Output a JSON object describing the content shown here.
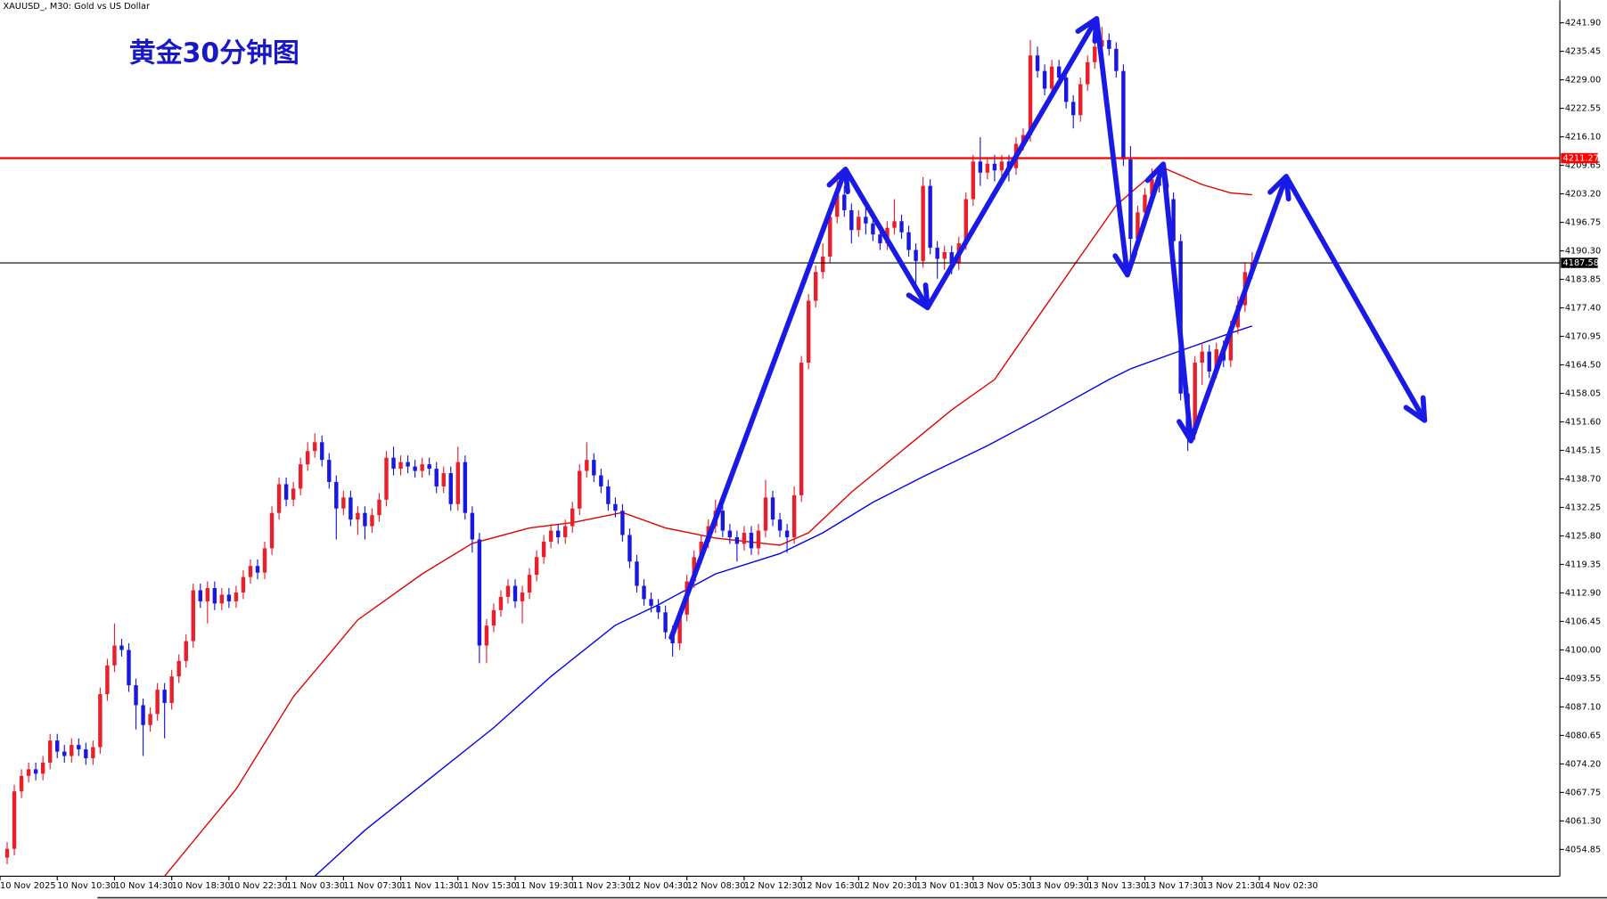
{
  "chart_data": {
    "type": "candlestick",
    "title": "黄金30分钟图",
    "subtitle": "XAUUSD_, M30:  Gold vs US Dollar",
    "up_color": "#e8202c",
    "down_color": "#1818e0",
    "xlim": [
      -1,
      217
    ],
    "ylim": [
      4048.8,
      4247.0
    ],
    "xticks": [
      {
        "value": -1,
        "label": "10 Nov 2025"
      },
      {
        "value": 7,
        "label": "10 Nov 10:30"
      },
      {
        "value": 15,
        "label": "10 Nov 14:30"
      },
      {
        "value": 23,
        "label": "10 Nov 18:30"
      },
      {
        "value": 31,
        "label": "10 Nov 22:30"
      },
      {
        "value": 39,
        "label": "11 Nov 03:30"
      },
      {
        "value": 47,
        "label": "11 Nov 07:30"
      },
      {
        "value": 55,
        "label": "11 Nov 11:30"
      },
      {
        "value": 63,
        "label": "11 Nov 15:30"
      },
      {
        "value": 71,
        "label": "11 Nov 19:30"
      },
      {
        "value": 79,
        "label": "11 Nov 23:30"
      },
      {
        "value": 87,
        "label": "12 Nov 04:30"
      },
      {
        "value": 95,
        "label": "12 Nov 08:30"
      },
      {
        "value": 103,
        "label": "12 Nov 12:30"
      },
      {
        "value": 111,
        "label": "12 Nov 16:30"
      },
      {
        "value": 119,
        "label": "12 Nov 20:30"
      },
      {
        "value": 127,
        "label": "13 Nov 01:30"
      },
      {
        "value": 135,
        "label": "13 Nov 05:30"
      },
      {
        "value": 143,
        "label": "13 Nov 09:30"
      },
      {
        "value": 151,
        "label": "13 Nov 13:30"
      },
      {
        "value": 159,
        "label": "13 Nov 17:30"
      },
      {
        "value": 167,
        "label": "13 Nov 21:30"
      },
      {
        "value": 175,
        "label": "14 Nov 02:30"
      }
    ],
    "yticks": [
      {
        "value": 4241.9,
        "label": "4241.90"
      },
      {
        "value": 4235.45,
        "label": "4235.45"
      },
      {
        "value": 4229,
        "label": "4229.00"
      },
      {
        "value": 4222.55,
        "label": "4222.55"
      },
      {
        "value": 4216.1,
        "label": "4216.10"
      },
      {
        "value": 4209.65,
        "label": "4209.65"
      },
      {
        "value": 4203.2,
        "label": "4203.20"
      },
      {
        "value": 4196.75,
        "label": "4196.75"
      },
      {
        "value": 4190.3,
        "label": "4190.30"
      },
      {
        "value": 4183.85,
        "label": "4183.85"
      },
      {
        "value": 4177.4,
        "label": "4177.40"
      },
      {
        "value": 4170.95,
        "label": "4170.95"
      },
      {
        "value": 4164.5,
        "label": "4164.50"
      },
      {
        "value": 4158.05,
        "label": "4158.05"
      },
      {
        "value": 4151.6,
        "label": "4151.60"
      },
      {
        "value": 4145.15,
        "label": "4145.15"
      },
      {
        "value": 4138.7,
        "label": "4138.70"
      },
      {
        "value": 4132.25,
        "label": "4132.25"
      },
      {
        "value": 4125.8,
        "label": "4125.80"
      },
      {
        "value": 4119.35,
        "label": "4119.35"
      },
      {
        "value": 4112.9,
        "label": "4112.90"
      },
      {
        "value": 4106.45,
        "label": "4106.45"
      },
      {
        "value": 4100,
        "label": "4100.00"
      },
      {
        "value": 4093.55,
        "label": "4093.55"
      },
      {
        "value": 4087.1,
        "label": "4087.10"
      },
      {
        "value": 4080.65,
        "label": "4080.65"
      },
      {
        "value": 4074.2,
        "label": "4074.20"
      },
      {
        "value": 4067.75,
        "label": "4067.75"
      },
      {
        "value": 4061.3,
        "label": "4061.30"
      },
      {
        "value": 4054.85,
        "label": "4054.85"
      }
    ],
    "hlines": [
      {
        "value": 4211.27,
        "color": "#ff0000"
      },
      {
        "value": 4187.58,
        "color": "#000000"
      }
    ],
    "series": [
      {
        "color": "#e00000",
        "x": [
          22,
          32,
          40,
          49,
          58,
          65,
          73,
          79,
          86,
          92,
          99,
          108,
          112,
          118,
          125,
          132,
          138,
          144,
          150,
          155,
          160,
          162,
          167,
          171,
          174
        ],
        "values": [
          4048.8,
          4068.5,
          4089.4,
          4106.8,
          4117.2,
          4124.1,
          4127.6,
          4128.8,
          4131.1,
          4127.6,
          4125.3,
          4123.7,
          4126.5,
          4135.7,
          4145.0,
          4154.3,
          4161.2,
          4175.2,
          4189.1,
          4200.6,
          4207.6,
          4208.8,
          4205.3,
          4203.4,
          4203.0
        ]
      },
      {
        "color": "#0000f0",
        "x": [
          43,
          50,
          59,
          68,
          76,
          85,
          91,
          99,
          108,
          114,
          121,
          128,
          137,
          145,
          154,
          157,
          164,
          171,
          174
        ],
        "values": [
          4048.8,
          4059.2,
          4070.8,
          4082.4,
          4094.0,
          4105.6,
          4110.2,
          4117.2,
          4121.8,
          4126.5,
          4133.4,
          4139.2,
          4146.2,
          4153.1,
          4161.2,
          4163.6,
          4167.7,
          4171.7,
          4173.3
        ]
      }
    ],
    "candles": [
      [
        4053,
        4056.5,
        4051.5,
        4055
      ],
      [
        4055,
        4069.5,
        4053.5,
        4068
      ],
      [
        4068,
        4073,
        4066.5,
        4071.5
      ],
      [
        4071.5,
        4074.5,
        4070,
        4073
      ],
      [
        4073,
        4074.5,
        4070.5,
        4072
      ],
      [
        4072,
        4076,
        4070.5,
        4074.5
      ],
      [
        4074.5,
        4081,
        4073,
        4079.5
      ],
      [
        4079.5,
        4081,
        4075.5,
        4077
      ],
      [
        4077,
        4078.5,
        4074.5,
        4076
      ],
      [
        4076,
        4080,
        4074.5,
        4078.5
      ],
      [
        4078.5,
        4080,
        4076,
        4077.5
      ],
      [
        4077.5,
        4079,
        4074,
        4075.5
      ],
      [
        4075.5,
        4079.5,
        4074,
        4078
      ],
      [
        4078,
        4091.5,
        4076.5,
        4090
      ],
      [
        4090,
        4098,
        4088.5,
        4096.5
      ],
      [
        4096.5,
        4106,
        4095,
        4101
      ],
      [
        4101,
        4102.5,
        4098.5,
        4100
      ],
      [
        4100,
        4101.5,
        4090.5,
        4092
      ],
      [
        4092,
        4093.5,
        4082,
        4087.5
      ],
      [
        4087.5,
        4089,
        4076,
        4083
      ],
      [
        4083,
        4087,
        4081.5,
        4085.5
      ],
      [
        4085.5,
        4092.5,
        4084,
        4091
      ],
      [
        4091,
        4092.5,
        4080,
        4088
      ],
      [
        4088,
        4095.5,
        4086.5,
        4094
      ],
      [
        4094,
        4099,
        4092.5,
        4097.5
      ],
      [
        4097.5,
        4103.5,
        4096,
        4102
      ],
      [
        4102,
        4115,
        4100.5,
        4113.5
      ],
      [
        4113.5,
        4115,
        4109.5,
        4111
      ],
      [
        4111,
        4115.5,
        4106,
        4114
      ],
      [
        4114,
        4115.5,
        4109,
        4110.5
      ],
      [
        4110.5,
        4114,
        4109,
        4112.5
      ],
      [
        4112.5,
        4114,
        4109.5,
        4111
      ],
      [
        4111,
        4114.5,
        4109.5,
        4113
      ],
      [
        4113,
        4118,
        4111.5,
        4116.5
      ],
      [
        4116.5,
        4120.5,
        4115,
        4119
      ],
      [
        4119,
        4120.5,
        4116,
        4117.5
      ],
      [
        4117.5,
        4124.5,
        4116,
        4123
      ],
      [
        4123,
        4132.5,
        4121.5,
        4131
      ],
      [
        4131,
        4139,
        4129.5,
        4137.5
      ],
      [
        4137.5,
        4139,
        4132.5,
        4134
      ],
      [
        4134,
        4138,
        4132.5,
        4136.5
      ],
      [
        4136.5,
        4143.5,
        4135,
        4142
      ],
      [
        4142,
        4147,
        4140.5,
        4145
      ],
      [
        4145,
        4149,
        4143.5,
        4147
      ],
      [
        4147,
        4148.5,
        4141.5,
        4143
      ],
      [
        4143,
        4144.5,
        4136.5,
        4138
      ],
      [
        4138,
        4139.5,
        4125,
        4132
      ],
      [
        4132,
        4136,
        4130.5,
        4134.5
      ],
      [
        4134.5,
        4136,
        4128,
        4129.5
      ],
      [
        4129.5,
        4132.5,
        4126,
        4131
      ],
      [
        4131,
        4132.5,
        4125,
        4128
      ],
      [
        4128,
        4132,
        4126.5,
        4130.5
      ],
      [
        4130.5,
        4135.5,
        4129,
        4134
      ],
      [
        4134,
        4145,
        4132.5,
        4143.5
      ],
      [
        4143.5,
        4146,
        4139.5,
        4141
      ],
      [
        4141,
        4144,
        4139.5,
        4142.5
      ],
      [
        4142.5,
        4144,
        4140,
        4141.5
      ],
      [
        4141.5,
        4143,
        4139,
        4140.5
      ],
      [
        4140.5,
        4143.5,
        4139,
        4142
      ],
      [
        4142,
        4143.5,
        4139.5,
        4141
      ],
      [
        4141,
        4142.5,
        4135.5,
        4137
      ],
      [
        4137,
        4141.5,
        4135.5,
        4140
      ],
      [
        4140,
        4141.5,
        4131.5,
        4133
      ],
      [
        4133,
        4146,
        4131.5,
        4142.5
      ],
      [
        4142.5,
        4144,
        4129.5,
        4131
      ],
      [
        4131,
        4132.5,
        4122,
        4125
      ],
      [
        4125,
        4126.5,
        4097,
        4101
      ],
      [
        4101,
        4107,
        4097,
        4105.5
      ],
      [
        4105.5,
        4110.5,
        4104,
        4109
      ],
      [
        4109,
        4113.5,
        4107.5,
        4112
      ],
      [
        4112,
        4116,
        4110.5,
        4114.5
      ],
      [
        4114.5,
        4116,
        4109.5,
        4111
      ],
      [
        4111,
        4114.5,
        4106,
        4113
      ],
      [
        4113,
        4118.5,
        4111.5,
        4117
      ],
      [
        4117,
        4122.5,
        4115.5,
        4121
      ],
      [
        4121,
        4126,
        4119.5,
        4124.5
      ],
      [
        4124.5,
        4128.5,
        4123,
        4127
      ],
      [
        4127,
        4128.5,
        4124,
        4125.5
      ],
      [
        4125.5,
        4129.5,
        4124,
        4128
      ],
      [
        4128,
        4133.5,
        4126.5,
        4132
      ],
      [
        4132,
        4142,
        4130.5,
        4140.5
      ],
      [
        4140.5,
        4147,
        4139,
        4143
      ],
      [
        4143,
        4144.5,
        4138,
        4139.5
      ],
      [
        4139.5,
        4141,
        4135.5,
        4137
      ],
      [
        4137,
        4138.5,
        4131.5,
        4133
      ],
      [
        4133,
        4134.5,
        4130,
        4131.5
      ],
      [
        4131.5,
        4133,
        4124.5,
        4126
      ],
      [
        4126,
        4127.5,
        4118.5,
        4120
      ],
      [
        4120,
        4121.5,
        4113,
        4114.5
      ],
      [
        4114.5,
        4116,
        4110,
        4111.5
      ],
      [
        4111.5,
        4113,
        4108.5,
        4110
      ],
      [
        4110,
        4111.5,
        4107,
        4108.5
      ],
      [
        4108.5,
        4110,
        4102.5,
        4104
      ],
      [
        4104,
        4105.5,
        4098.5,
        4101.5
      ],
      [
        4101.5,
        4109.5,
        4100,
        4108
      ],
      [
        4108,
        4117,
        4106.5,
        4115.5
      ],
      [
        4115.5,
        4122.5,
        4114,
        4121
      ],
      [
        4121,
        4126,
        4119.5,
        4124.5
      ],
      [
        4124.5,
        4129.5,
        4123,
        4128
      ],
      [
        4128,
        4134,
        4126.5,
        4131.5
      ],
      [
        4131.5,
        4133,
        4125.5,
        4127
      ],
      [
        4127,
        4128.5,
        4124,
        4125.5
      ],
      [
        4125.5,
        4127,
        4120,
        4124
      ],
      [
        4124,
        4128,
        4122.5,
        4126.5
      ],
      [
        4126.5,
        4128,
        4121.5,
        4123
      ],
      [
        4123,
        4128.5,
        4121.5,
        4127
      ],
      [
        4127,
        4138.5,
        4125.5,
        4134.5
      ],
      [
        4134.5,
        4136,
        4128,
        4129.5
      ],
      [
        4129.5,
        4131,
        4125.5,
        4127
      ],
      [
        4127,
        4128.5,
        4122,
        4125.5
      ],
      [
        4125.5,
        4137,
        4124,
        4135
      ],
      [
        4135,
        4166.5,
        4133.5,
        4165
      ],
      [
        4165,
        4180.5,
        4163.5,
        4179
      ],
      [
        4179,
        4187,
        4177.5,
        4185.5
      ],
      [
        4185.5,
        4192,
        4184,
        4189
      ],
      [
        4189,
        4200,
        4187.5,
        4198
      ],
      [
        4198,
        4208,
        4196.5,
        4203
      ],
      [
        4203,
        4205,
        4198,
        4199.5
      ],
      [
        4199.5,
        4201,
        4192,
        4195
      ],
      [
        4195,
        4199.5,
        4193.5,
        4198
      ],
      [
        4198,
        4200,
        4194,
        4196.5
      ],
      [
        4196.5,
        4198,
        4192.5,
        4194
      ],
      [
        4194,
        4195.5,
        4190.5,
        4192
      ],
      [
        4192,
        4197,
        4190.5,
        4195.5
      ],
      [
        4195.5,
        4202,
        4194,
        4197
      ],
      [
        4197,
        4198.5,
        4193,
        4194.5
      ],
      [
        4194.5,
        4196,
        4189,
        4190.5
      ],
      [
        4190.5,
        4192,
        4183,
        4188
      ],
      [
        4188,
        4207,
        4186.5,
        4205
      ],
      [
        4205,
        4206.5,
        4189.5,
        4191
      ],
      [
        4191,
        4192.5,
        4184,
        4188.5
      ],
      [
        4188.5,
        4191.5,
        4186,
        4190
      ],
      [
        4190,
        4191.5,
        4185,
        4187.5
      ],
      [
        4187.5,
        4193.5,
        4186,
        4192
      ],
      [
        4192,
        4203.5,
        4190.5,
        4202
      ],
      [
        4202,
        4212,
        4200.5,
        4210.5
      ],
      [
        4210.5,
        4216,
        4205,
        4208
      ],
      [
        4208,
        4211.5,
        4206.5,
        4210
      ],
      [
        4210,
        4212,
        4206,
        4208.5
      ],
      [
        4208.5,
        4212,
        4206.5,
        4210.5
      ],
      [
        4210.5,
        4212,
        4206,
        4209
      ],
      [
        4209,
        4216,
        4207.5,
        4214.5
      ],
      [
        4214.5,
        4218,
        4213,
        4216.5
      ],
      [
        4216.5,
        4238,
        4215,
        4234.5
      ],
      [
        4234.5,
        4236.5,
        4229.5,
        4231
      ],
      [
        4231,
        4232.5,
        4225.5,
        4227
      ],
      [
        4227,
        4233.5,
        4225.5,
        4232
      ],
      [
        4232,
        4233.5,
        4228,
        4229.5
      ],
      [
        4229.5,
        4231,
        4222.5,
        4224
      ],
      [
        4224,
        4225.5,
        4218,
        4221
      ],
      [
        4221,
        4229.5,
        4219.5,
        4228
      ],
      [
        4228,
        4234.5,
        4226.5,
        4233
      ],
      [
        4233,
        4238,
        4231.5,
        4236.5
      ],
      [
        4236.5,
        4241,
        4235,
        4238
      ],
      [
        4238,
        4239.5,
        4234.5,
        4236
      ],
      [
        4236,
        4237.5,
        4229.5,
        4231
      ],
      [
        4231,
        4232.5,
        4209.5,
        4211
      ],
      [
        4211,
        4214,
        4187,
        4193
      ],
      [
        4193,
        4200.5,
        4191.5,
        4199
      ],
      [
        4199,
        4204.5,
        4197.5,
        4203
      ],
      [
        4203,
        4209,
        4201.5,
        4206.5
      ],
      [
        4206.5,
        4208,
        4203.5,
        4205
      ],
      [
        4205,
        4206.5,
        4200.5,
        4202
      ],
      [
        4202,
        4203.5,
        4191,
        4192.5
      ],
      [
        4192.5,
        4194,
        4156.5,
        4158
      ],
      [
        4158,
        4159.5,
        4145,
        4149
      ],
      [
        4149,
        4166.5,
        4147.5,
        4165
      ],
      [
        4165,
        4169.5,
        4160,
        4167.5
      ],
      [
        4167.5,
        4169,
        4161.5,
        4163
      ],
      [
        4163,
        4169.5,
        4161.5,
        4168
      ],
      [
        4168,
        4170,
        4164,
        4165.5
      ],
      [
        4165.5,
        4174.5,
        4164,
        4173
      ],
      [
        4173,
        4180,
        4171.5,
        4178
      ],
      [
        4178,
        4187.5,
        4176.5,
        4185.5
      ],
      [
        4185.5,
        4190,
        4184,
        4187.58
      ]
    ]
  }
}
